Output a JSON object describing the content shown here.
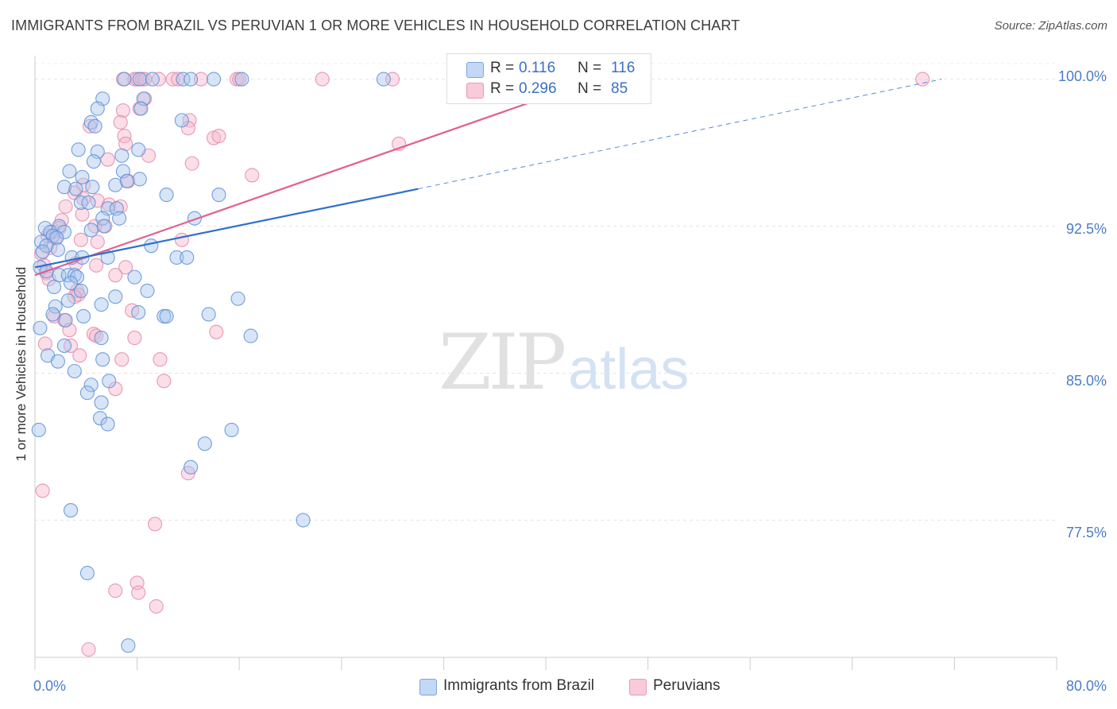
{
  "title": "IMMIGRANTS FROM BRAZIL VS PERUVIAN 1 OR MORE VEHICLES IN HOUSEHOLD CORRELATION CHART",
  "source_label": "Source:",
  "source_value": "ZipAtlas.com",
  "watermark": {
    "zip": "ZIP",
    "atlas": "atlas"
  },
  "legend": {
    "rows": [
      {
        "r_label": "R =",
        "r_value": "0.116",
        "n_label": "N =",
        "n_value": "116",
        "color": "#a8c6ee"
      },
      {
        "r_label": "R =",
        "r_value": "0.296",
        "n_label": "N =",
        "n_value": "85",
        "color": "#f7b6cb"
      }
    ],
    "series_names": [
      "Immigrants from Brazil",
      "Peruvians"
    ]
  },
  "axis": {
    "y_label": "1 or more Vehicles in Household",
    "y_ticks": [
      "100.0%",
      "92.5%",
      "85.0%",
      "77.5%"
    ],
    "x_ticks": [
      "0.0%",
      "80.0%"
    ]
  },
  "colors": {
    "blue_fill": "#a8c6ee",
    "blue_stroke": "#5b8fd8",
    "blue_line": "#2e6fce",
    "pink_fill": "#f7b6cb",
    "pink_stroke": "#e48aa9",
    "pink_line": "#e0608f"
  },
  "chart_data": {
    "type": "scatter",
    "title": "IMMIGRANTS FROM BRAZIL VS PERUVIAN 1 OR MORE VEHICLES IN HOUSEHOLD CORRELATION CHART",
    "xlabel": "",
    "ylabel": "1 or more Vehicles in Household",
    "xlim": [
      0,
      80
    ],
    "ylim": [
      70.5,
      101.2
    ],
    "y_ticks": [
      77.5,
      85.0,
      92.5,
      100.0
    ],
    "grid": true,
    "series": [
      {
        "name": "Immigrants from Brazil",
        "r": 0.116,
        "n": 116,
        "trend": {
          "x0": 0,
          "y0": 90.4,
          "x1": 30,
          "y1": 94.4,
          "dash_to_x": 71,
          "dash_to_y": 100.0
        },
        "points": [
          [
            7.0,
            100.0
          ],
          [
            8.2,
            100.0
          ],
          [
            9.2,
            100.0
          ],
          [
            11.6,
            100.0
          ],
          [
            12.2,
            100.0
          ],
          [
            14.0,
            100.0
          ],
          [
            16.2,
            100.0
          ],
          [
            27.3,
            100.0
          ],
          [
            5.3,
            99.0
          ],
          [
            8.5,
            99.0
          ],
          [
            4.9,
            98.5
          ],
          [
            8.3,
            98.5
          ],
          [
            4.4,
            97.8
          ],
          [
            4.7,
            97.6
          ],
          [
            11.5,
            97.9
          ],
          [
            3.4,
            96.4
          ],
          [
            4.9,
            96.3
          ],
          [
            6.8,
            96.1
          ],
          [
            8.1,
            96.4
          ],
          [
            2.7,
            95.3
          ],
          [
            4.6,
            95.8
          ],
          [
            3.7,
            95.0
          ],
          [
            6.9,
            95.3
          ],
          [
            2.3,
            94.5
          ],
          [
            3.2,
            94.4
          ],
          [
            4.5,
            94.5
          ],
          [
            6.3,
            94.6
          ],
          [
            7.2,
            94.8
          ],
          [
            8.2,
            94.9
          ],
          [
            10.3,
            94.1
          ],
          [
            14.4,
            94.1
          ],
          [
            3.6,
            93.7
          ],
          [
            4.2,
            93.7
          ],
          [
            5.7,
            93.4
          ],
          [
            6.4,
            93.4
          ],
          [
            6.6,
            92.9
          ],
          [
            5.3,
            92.9
          ],
          [
            12.5,
            92.9
          ],
          [
            1.9,
            92.5
          ],
          [
            4.4,
            92.3
          ],
          [
            5.4,
            92.5
          ],
          [
            0.8,
            92.4
          ],
          [
            2.3,
            92.2
          ],
          [
            1.2,
            92.2
          ],
          [
            1.4,
            92.0
          ],
          [
            1.7,
            91.9
          ],
          [
            0.5,
            91.7
          ],
          [
            0.9,
            91.5
          ],
          [
            1.8,
            91.3
          ],
          [
            9.1,
            91.5
          ],
          [
            0.6,
            91.2
          ],
          [
            2.9,
            90.9
          ],
          [
            3.7,
            90.9
          ],
          [
            5.7,
            90.9
          ],
          [
            11.1,
            90.9
          ],
          [
            11.9,
            90.9
          ],
          [
            0.4,
            90.4
          ],
          [
            0.9,
            90.2
          ],
          [
            1.9,
            90.0
          ],
          [
            2.6,
            90.0
          ],
          [
            3.1,
            90.0
          ],
          [
            3.3,
            89.9
          ],
          [
            7.8,
            89.9
          ],
          [
            1.5,
            89.4
          ],
          [
            2.8,
            89.6
          ],
          [
            3.6,
            89.2
          ],
          [
            8.8,
            89.2
          ],
          [
            6.3,
            88.9
          ],
          [
            15.9,
            88.8
          ],
          [
            2.6,
            88.7
          ],
          [
            1.6,
            88.4
          ],
          [
            5.2,
            88.5
          ],
          [
            8.1,
            88.1
          ],
          [
            1.4,
            88.0
          ],
          [
            3.8,
            87.9
          ],
          [
            10.1,
            87.9
          ],
          [
            10.3,
            87.9
          ],
          [
            13.6,
            88.0
          ],
          [
            0.4,
            87.3
          ],
          [
            2.4,
            87.7
          ],
          [
            5.2,
            86.8
          ],
          [
            16.9,
            86.9
          ],
          [
            2.3,
            86.4
          ],
          [
            1.0,
            85.9
          ],
          [
            1.8,
            85.6
          ],
          [
            5.3,
            85.7
          ],
          [
            3.1,
            85.1
          ],
          [
            4.4,
            84.4
          ],
          [
            5.8,
            84.6
          ],
          [
            4.1,
            84.0
          ],
          [
            5.2,
            83.5
          ],
          [
            5.1,
            82.7
          ],
          [
            5.7,
            82.4
          ],
          [
            0.3,
            82.1
          ],
          [
            15.4,
            82.1
          ],
          [
            13.3,
            81.4
          ],
          [
            12.2,
            80.2
          ],
          [
            2.8,
            78.0
          ],
          [
            21.0,
            77.5
          ],
          [
            4.1,
            74.8
          ],
          [
            7.3,
            71.1
          ]
        ]
      },
      {
        "name": "Peruvians",
        "r": 0.296,
        "n": 85,
        "trend": {
          "x0": 0,
          "y0": 90.0,
          "x1": 44,
          "y1": 100.0
        },
        "points": [
          [
            6.9,
            100.0
          ],
          [
            7.8,
            100.0
          ],
          [
            8.0,
            100.0
          ],
          [
            8.4,
            100.0
          ],
          [
            8.6,
            100.0
          ],
          [
            9.7,
            100.0
          ],
          [
            10.8,
            100.0
          ],
          [
            11.2,
            100.0
          ],
          [
            13.0,
            100.0
          ],
          [
            15.8,
            100.0
          ],
          [
            16.0,
            100.0
          ],
          [
            22.5,
            100.0
          ],
          [
            28.0,
            100.0
          ],
          [
            69.5,
            100.0
          ],
          [
            8.6,
            99.0
          ],
          [
            6.9,
            98.4
          ],
          [
            8.2,
            98.5
          ],
          [
            6.7,
            97.8
          ],
          [
            12.1,
            97.9
          ],
          [
            4.3,
            97.6
          ],
          [
            12.0,
            97.5
          ],
          [
            14.0,
            97.0
          ],
          [
            7.0,
            97.1
          ],
          [
            14.4,
            97.1
          ],
          [
            7.1,
            96.7
          ],
          [
            28.5,
            96.7
          ],
          [
            8.9,
            96.1
          ],
          [
            5.7,
            95.9
          ],
          [
            12.3,
            95.7
          ],
          [
            17.0,
            95.1
          ],
          [
            3.8,
            94.6
          ],
          [
            7.3,
            94.8
          ],
          [
            3.1,
            94.2
          ],
          [
            3.8,
            93.9
          ],
          [
            4.9,
            93.8
          ],
          [
            5.8,
            93.6
          ],
          [
            6.7,
            93.5
          ],
          [
            2.4,
            93.5
          ],
          [
            2.1,
            92.8
          ],
          [
            3.7,
            93.1
          ],
          [
            4.7,
            92.5
          ],
          [
            5.5,
            92.5
          ],
          [
            1.9,
            92.4
          ],
          [
            1.4,
            92.2
          ],
          [
            1.0,
            92.0
          ],
          [
            1.6,
            91.9
          ],
          [
            3.6,
            91.8
          ],
          [
            4.9,
            91.7
          ],
          [
            11.5,
            91.8
          ],
          [
            1.2,
            91.4
          ],
          [
            0.5,
            91.1
          ],
          [
            0.7,
            90.5
          ],
          [
            3.2,
            90.6
          ],
          [
            4.8,
            90.5
          ],
          [
            7.1,
            90.4
          ],
          [
            0.9,
            90.1
          ],
          [
            6.3,
            90.0
          ],
          [
            1.1,
            89.8
          ],
          [
            3.3,
            89.2
          ],
          [
            3.4,
            89.0
          ],
          [
            3.1,
            88.9
          ],
          [
            7.6,
            88.2
          ],
          [
            1.5,
            87.9
          ],
          [
            2.3,
            87.7
          ],
          [
            4.6,
            87.0
          ],
          [
            4.8,
            86.9
          ],
          [
            2.7,
            87.2
          ],
          [
            14.2,
            87.1
          ],
          [
            7.8,
            86.8
          ],
          [
            3.5,
            85.9
          ],
          [
            2.8,
            86.4
          ],
          [
            0.8,
            86.5
          ],
          [
            6.8,
            85.7
          ],
          [
            9.8,
            85.7
          ],
          [
            10.1,
            84.6
          ],
          [
            6.3,
            84.2
          ],
          [
            12.0,
            79.9
          ],
          [
            0.6,
            79.0
          ],
          [
            9.4,
            77.3
          ],
          [
            6.3,
            73.9
          ],
          [
            8.0,
            74.3
          ],
          [
            8.1,
            73.8
          ],
          [
            9.5,
            73.1
          ],
          [
            4.2,
            70.9
          ]
        ]
      }
    ]
  }
}
